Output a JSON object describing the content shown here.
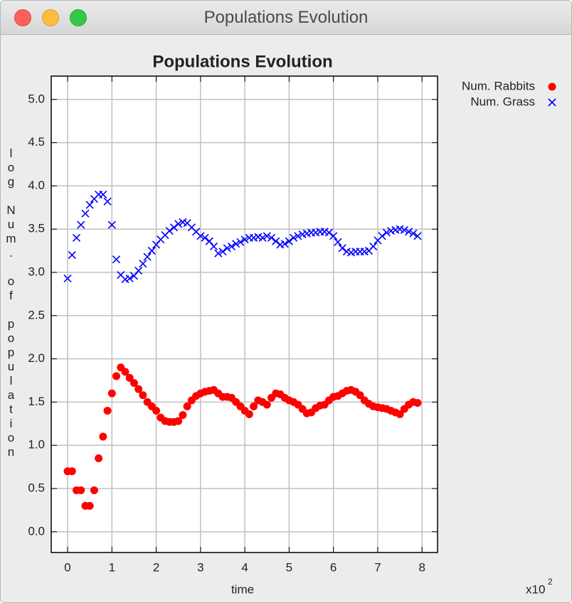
{
  "window": {
    "title": "Populations Evolution"
  },
  "chart_data": {
    "type": "scatter",
    "title": "Populations Evolution",
    "xlabel": "time",
    "ylabel": "log Num. of population",
    "x_multiplier": "x10",
    "x_multiplier_exponent": "2",
    "xlim": [
      -0.37,
      8.35
    ],
    "ylim": [
      -0.24,
      5.27
    ],
    "xticks": [
      0,
      1,
      2,
      3,
      4,
      5,
      6,
      7,
      8
    ],
    "yticks": [
      {
        "value": 0,
        "label": "0.0"
      },
      {
        "value": 0.5,
        "label": "0.5"
      },
      {
        "value": 1,
        "label": "1.0"
      },
      {
        "value": 1.5,
        "label": "1.5"
      },
      {
        "value": 2,
        "label": "2.0"
      },
      {
        "value": 2.5,
        "label": "2.5"
      },
      {
        "value": 3,
        "label": "3.0"
      },
      {
        "value": 3.5,
        "label": "3.5"
      },
      {
        "value": 4,
        "label": "4.0"
      },
      {
        "value": 4.5,
        "label": "4.5"
      },
      {
        "value": 5,
        "label": "5.0"
      }
    ],
    "grid": true,
    "legend": "outside-top-right",
    "x": [
      0,
      0.1,
      0.2,
      0.3,
      0.4,
      0.5,
      0.6,
      0.7,
      0.8,
      0.9,
      1,
      1.1,
      1.2,
      1.3,
      1.4,
      1.5,
      1.6,
      1.7,
      1.8,
      1.9,
      2,
      2.1,
      2.2,
      2.3,
      2.4,
      2.5,
      2.6,
      2.7,
      2.8,
      2.9,
      3,
      3.1,
      3.2,
      3.3,
      3.4,
      3.5,
      3.6,
      3.7,
      3.8,
      3.9,
      4,
      4.1,
      4.2,
      4.3,
      4.4,
      4.5,
      4.6,
      4.7,
      4.8,
      4.9,
      5,
      5.1,
      5.2,
      5.3,
      5.4,
      5.5,
      5.6,
      5.7,
      5.8,
      5.9,
      6,
      6.1,
      6.2,
      6.3,
      6.4,
      6.5,
      6.6,
      6.7,
      6.8,
      6.9,
      7,
      7.1,
      7.2,
      7.3,
      7.4,
      7.5,
      7.6,
      7.7,
      7.8,
      7.9
    ],
    "series": [
      {
        "name": "Num. Rabbits",
        "color": "#ff0000",
        "marker": "circle",
        "values": [
          0.7,
          0.7,
          0.48,
          0.48,
          0.3,
          0.3,
          0.48,
          0.85,
          1.1,
          1.4,
          1.6,
          1.8,
          1.9,
          1.85,
          1.78,
          1.72,
          1.65,
          1.58,
          1.5,
          1.45,
          1.4,
          1.32,
          1.28,
          1.27,
          1.27,
          1.28,
          1.35,
          1.45,
          1.52,
          1.57,
          1.6,
          1.62,
          1.63,
          1.64,
          1.6,
          1.56,
          1.56,
          1.55,
          1.5,
          1.45,
          1.4,
          1.36,
          1.45,
          1.52,
          1.5,
          1.47,
          1.55,
          1.6,
          1.59,
          1.55,
          1.52,
          1.5,
          1.47,
          1.42,
          1.37,
          1.38,
          1.43,
          1.46,
          1.47,
          1.52,
          1.56,
          1.57,
          1.6,
          1.63,
          1.64,
          1.62,
          1.58,
          1.52,
          1.48,
          1.45,
          1.44,
          1.43,
          1.42,
          1.4,
          1.38,
          1.36,
          1.42,
          1.47,
          1.5,
          1.49
        ]
      },
      {
        "name": "Num. Grass",
        "color": "#0000ff",
        "marker": "x",
        "values": [
          2.93,
          3.2,
          3.4,
          3.55,
          3.68,
          3.78,
          3.85,
          3.9,
          3.9,
          3.82,
          3.55,
          3.15,
          2.97,
          2.92,
          2.93,
          2.96,
          3.02,
          3.1,
          3.18,
          3.25,
          3.32,
          3.38,
          3.43,
          3.48,
          3.52,
          3.56,
          3.58,
          3.57,
          3.52,
          3.47,
          3.42,
          3.4,
          3.36,
          3.3,
          3.22,
          3.24,
          3.28,
          3.3,
          3.33,
          3.35,
          3.38,
          3.4,
          3.4,
          3.41,
          3.4,
          3.42,
          3.4,
          3.36,
          3.32,
          3.33,
          3.36,
          3.4,
          3.42,
          3.44,
          3.45,
          3.46,
          3.46,
          3.47,
          3.47,
          3.46,
          3.42,
          3.35,
          3.28,
          3.24,
          3.23,
          3.24,
          3.24,
          3.24,
          3.25,
          3.3,
          3.37,
          3.42,
          3.46,
          3.48,
          3.49,
          3.5,
          3.49,
          3.47,
          3.45,
          3.42
        ]
      }
    ]
  }
}
